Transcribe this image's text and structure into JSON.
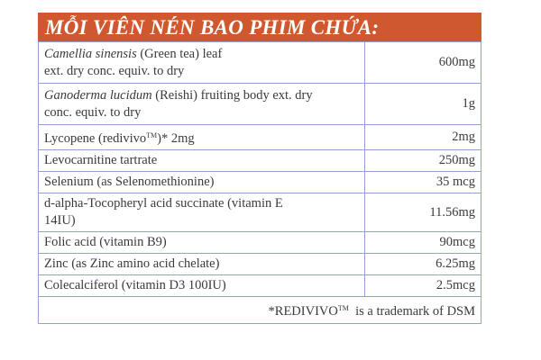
{
  "header": {
    "title": "MỖI VIÊN NÉN BAO PHIM CHỨA:"
  },
  "rows": [
    {
      "italic": "Camellia sinensis",
      "text": " (Green tea) leaf",
      "line2": "ext. dry conc. equiv. to dry",
      "amount": "600mg"
    },
    {
      "italic": "Ganoderma lucidum",
      "text": " (Reishi) fruiting body ext. dry",
      "line2": "conc. equiv. to dry",
      "amount": "1g"
    },
    {
      "text": "Lycopene (redivivo",
      "sup": "TM",
      "after": ")* 2mg",
      "amount": "2mg"
    },
    {
      "text": "Levocarnitine tartrate",
      "amount": "250mg"
    },
    {
      "text": "Selenium (as Selenomethionine)",
      "amount": "35 mcg"
    },
    {
      "text": "d-alpha-Tocopheryl acid succinate (vitamin E",
      "line2": "14IU)",
      "amount": "11.56mg"
    },
    {
      "text": "Folic acid (vitamin B9)",
      "amount": "90mcg"
    },
    {
      "text": "Zinc (as Zinc amino acid chelate)",
      "amount": "6.25mg"
    },
    {
      "text": "Colecalciferol (vitamin D3 100IU)",
      "amount": "2.5mcg"
    }
  ],
  "footer": {
    "text": "*REDIVIVO",
    "sup": "TM",
    "after": "  is a trademark of DSM"
  },
  "colors": {
    "header_bg": "#d0582f",
    "border": "#8fa2d2"
  }
}
